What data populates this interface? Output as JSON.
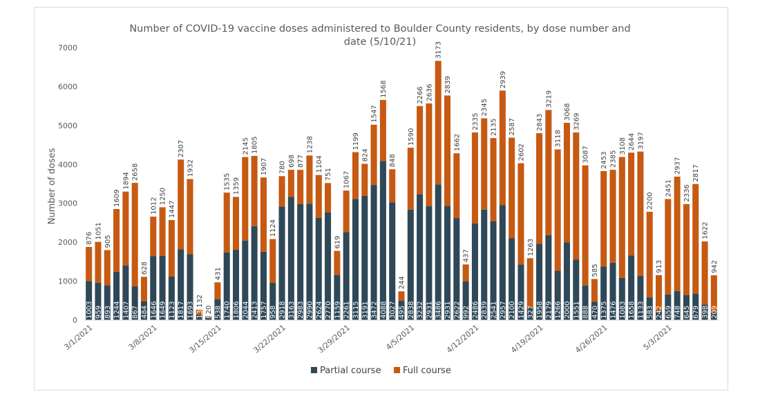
{
  "chart_data": {
    "type": "bar",
    "stacked": true,
    "title": "Number of COVID-19 vaccine doses administered to Boulder County residents, by dose number and date (5/10/21)",
    "title_lines": [
      "Number of COVID-19 vaccine doses administered to Boulder County residents, by dose number and",
      "date (5/10/21)"
    ],
    "xlabel": "",
    "ylabel": "Number of doses",
    "ylim": [
      0,
      7000
    ],
    "yticks": [
      0,
      1000,
      2000,
      3000,
      4000,
      5000,
      6000,
      7000
    ],
    "grid": false,
    "legend_position": "bottom",
    "x_tick_labels": [
      {
        "index": 0,
        "label": "3/1/2021"
      },
      {
        "index": 7,
        "label": "3/8/2021"
      },
      {
        "index": 14,
        "label": "3/15/2021"
      },
      {
        "index": 21,
        "label": "3/22/2021"
      },
      {
        "index": 28,
        "label": "3/29/2021"
      },
      {
        "index": 35,
        "label": "4/5/2021"
      },
      {
        "index": 42,
        "label": "4/12/2021"
      },
      {
        "index": 49,
        "label": "4/19/2021"
      },
      {
        "index": 56,
        "label": "4/26/2021"
      },
      {
        "index": 63,
        "label": "5/3/2021"
      }
    ],
    "series": [
      {
        "name": "Partial course",
        "color": "#2f4858",
        "values": [
          1003,
          959,
          893,
          1244,
          1407,
          867,
          484,
          1646,
          1649,
          1123,
          1817,
          1693,
          133,
          80,
          538,
          1740,
          1806,
          2044,
          2413,
          1757,
          958,
          2918,
          3163,
          2983,
          2990,
          2624,
          2770,
          1159,
          2261,
          3115,
          3191,
          3472,
          4088,
          3027,
          495,
          2838,
          3232,
          2931,
          3486,
          2931,
          2622,
          992,
          2486,
          2839,
          2541,
          2957,
          2100,
          1429,
          327,
          1958,
          2179,
          1266,
          2000,
          1551,
          888,
          470,
          1375,
          1476,
          1083,
          1658,
          1133,
          583,
          242,
          659,
          748,
          645,
          679,
          398,
          209
        ]
      },
      {
        "name": "Full course",
        "color": "#c65a12",
        "values": [
          876,
          1051,
          905,
          1609,
          1894,
          2658,
          628,
          1012,
          1250,
          1447,
          2307,
          1932,
          132,
          20,
          431,
          1535,
          1359,
          2145,
          1805,
          1907,
          1124,
          780,
          698,
          877,
          1238,
          1104,
          751,
          619,
          1067,
          1199,
          824,
          1547,
          1568,
          848,
          244,
          1590,
          2266,
          2636,
          3173,
          2839,
          1662,
          437,
          2335,
          2345,
          2135,
          2939,
          2587,
          2602,
          1263,
          2843,
          3219,
          3118,
          3068,
          3269,
          3087,
          585,
          2453,
          2385,
          3108,
          2644,
          3197,
          2200,
          913,
          2451,
          2937,
          2336,
          2817,
          1622,
          942
        ]
      }
    ]
  }
}
